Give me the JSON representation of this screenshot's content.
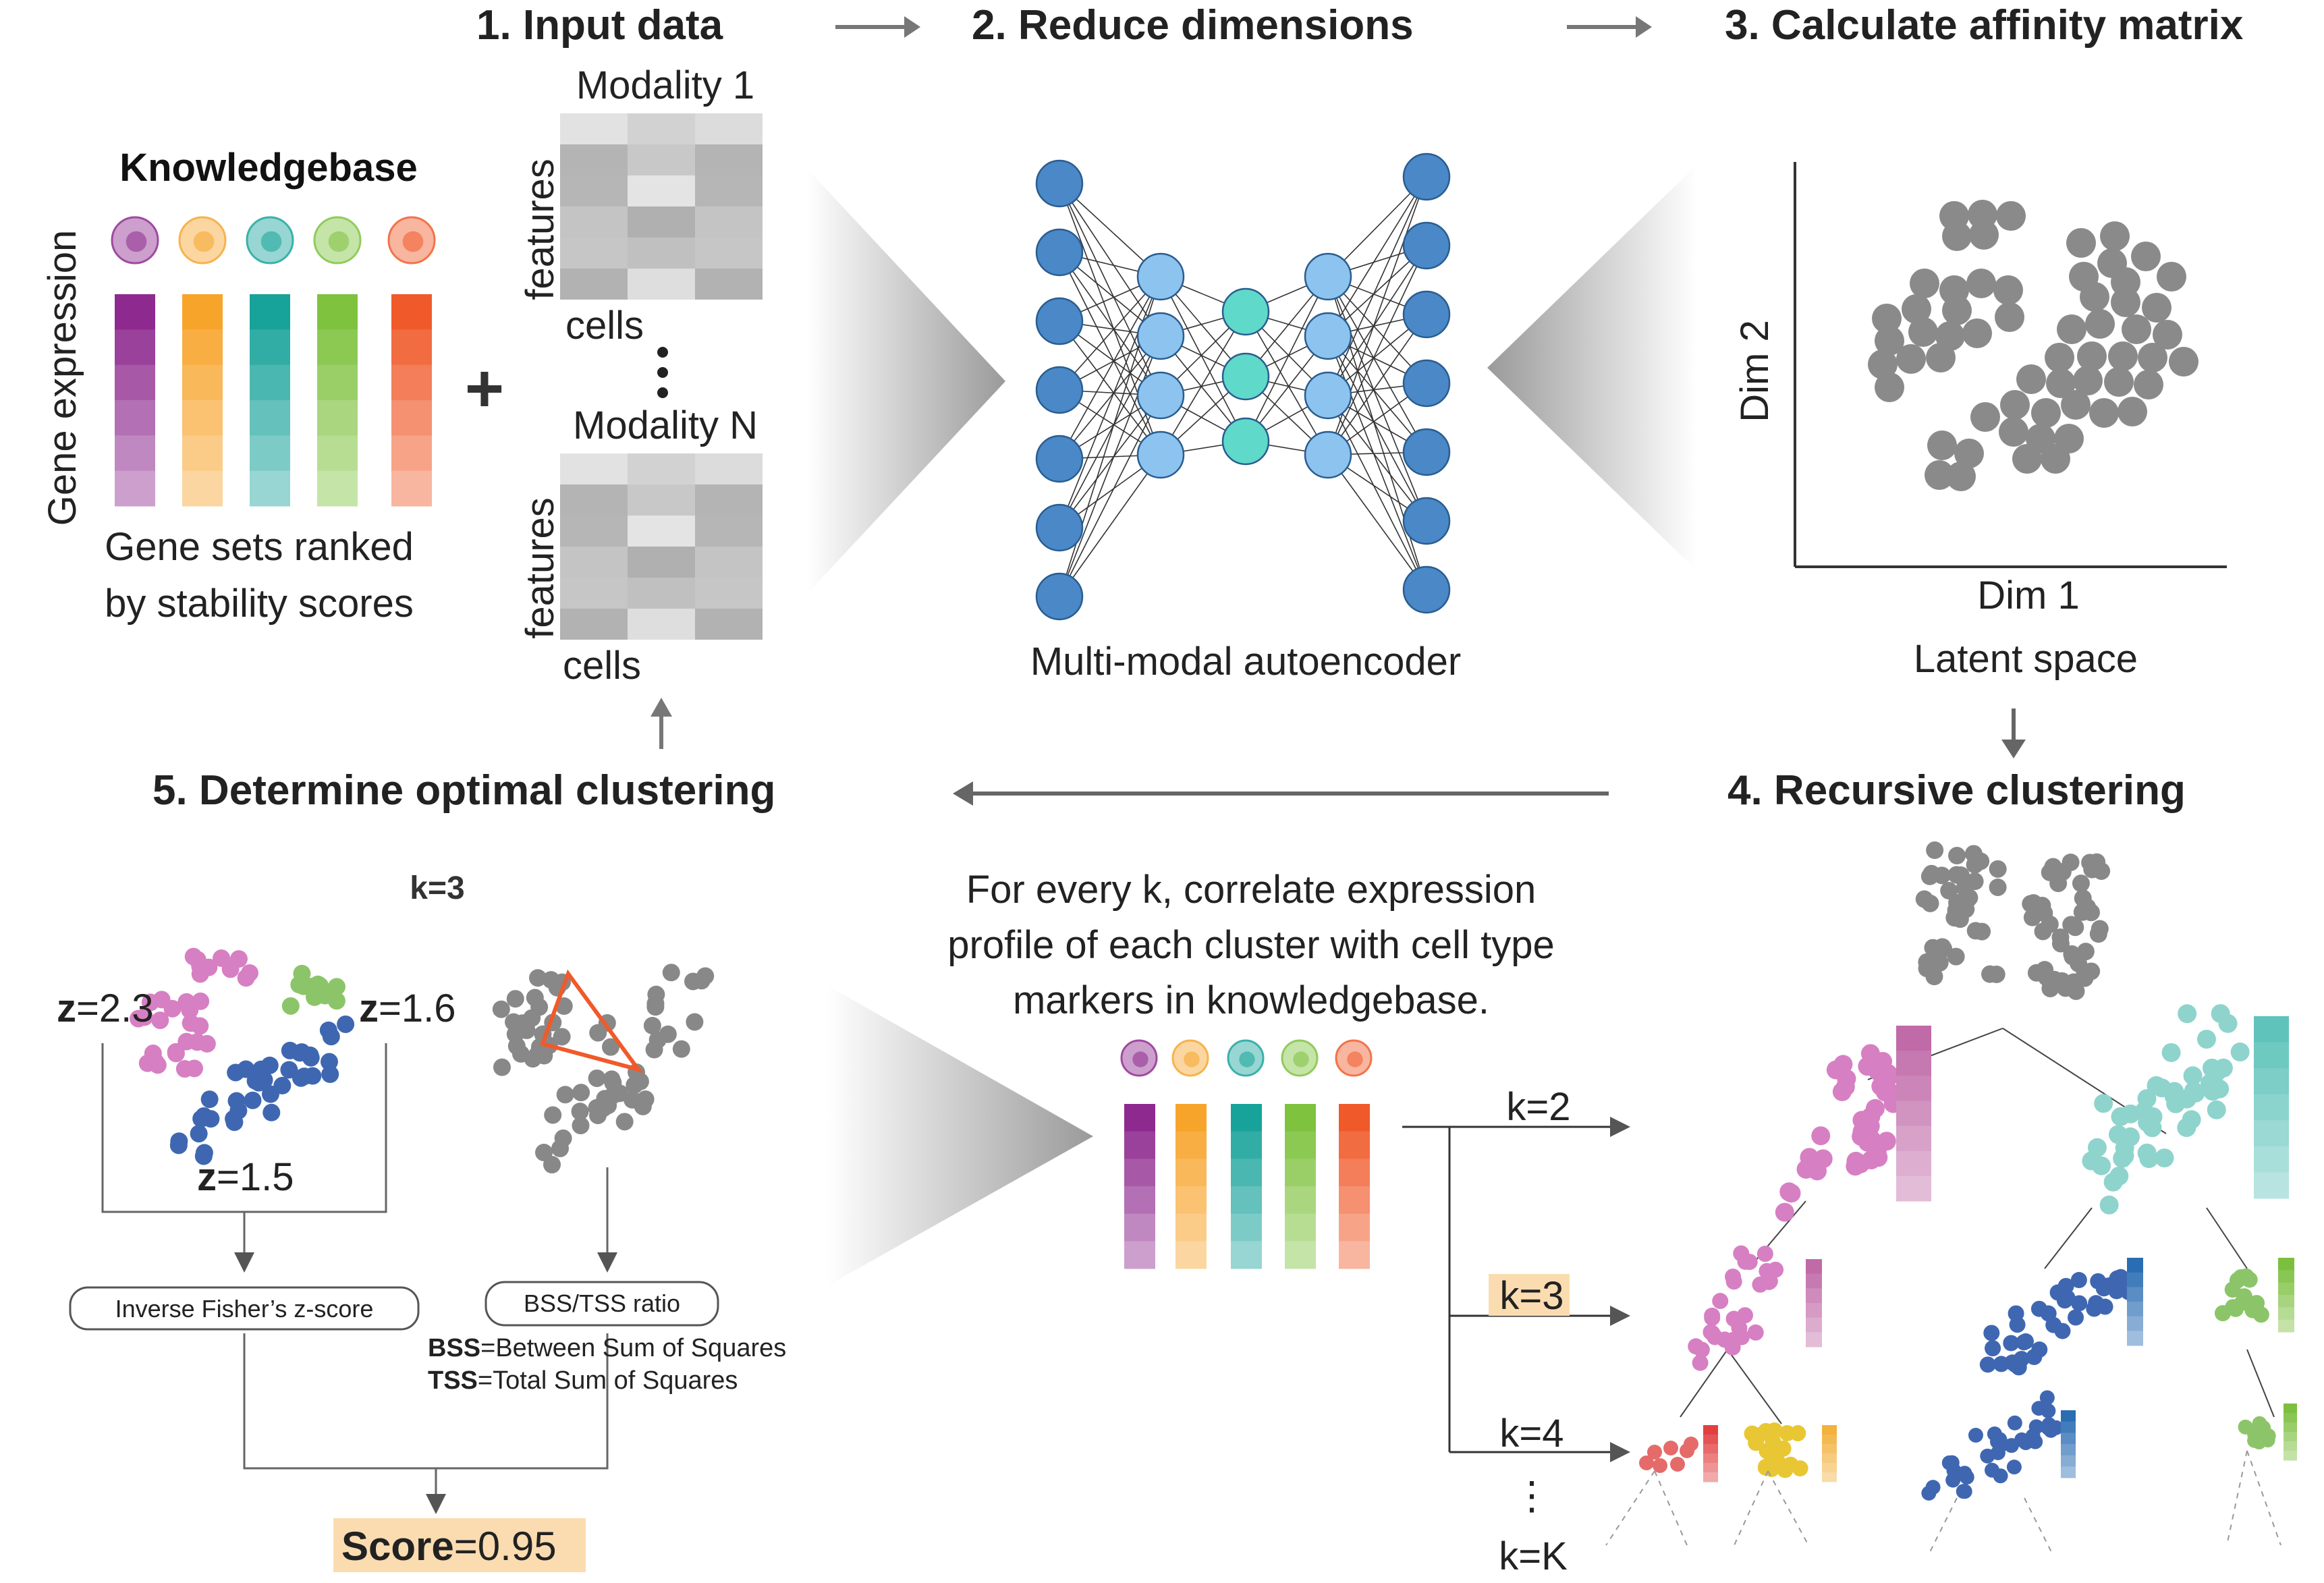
{
  "steps": {
    "s1": "1.  Input data",
    "s2": "2.  Reduce dimensions",
    "s3": "3.  Calculate affinity matrix",
    "s4": "4.  Recursive clustering",
    "s5": "5.  Determine optimal clustering"
  },
  "input": {
    "knowledgebase": "Knowledgebase",
    "gene_expression": "Gene expression",
    "caption_line1": "Gene sets ranked",
    "caption_line2": "by stability scores",
    "plus": "+",
    "modality1": "Modality 1",
    "modalityN": "Modality N",
    "features": "features",
    "cells": "cells"
  },
  "reduce": {
    "caption": "Multi-modal autoencoder"
  },
  "affinity": {
    "dim1": "Dim 1",
    "dim2": "Dim 2",
    "caption": "Latent space"
  },
  "correlate": {
    "line1": "For every k, correlate expression",
    "line2": "profile of each cluster with cell type",
    "line3": "markers in knowledgebase."
  },
  "kvals": {
    "k2": "k=2",
    "k3": "k=3",
    "k4": "k=4",
    "dots": "⋮",
    "kK": "k=K"
  },
  "optimal": {
    "k_label": "k=3",
    "z_sym": "z",
    "z1": "=2.3",
    "z2": "=1.6",
    "z3": "=1.5",
    "fisher": "Inverse Fisher’s z-score",
    "bss_ratio": "BSS/TSS ratio",
    "bss_abbr": "BSS",
    "bss_def": "=Between Sum of Squares",
    "tss_abbr": "TSS",
    "tss_def": "=Total Sum of Squares",
    "score_label": "Score",
    "score_value": "=0.95"
  },
  "colors": {
    "purple": "#8e2a8f",
    "orange": "#f7a42b",
    "teal": "#17a39a",
    "green": "#7ec23e",
    "red": "#f05a2a",
    "pink": "#d77fc3",
    "blue": "#3f67b1",
    "lightgreen": "#8cc569",
    "lightteal": "#8fd3cd",
    "yellow": "#e9c734",
    "salmon": "#e56b6b",
    "gray": "#888888",
    "highlight": "#fbdcb0",
    "node_blue": "#4a88c7",
    "node_light": "#8cc3ef",
    "node_teal": "#5fd9c9"
  }
}
